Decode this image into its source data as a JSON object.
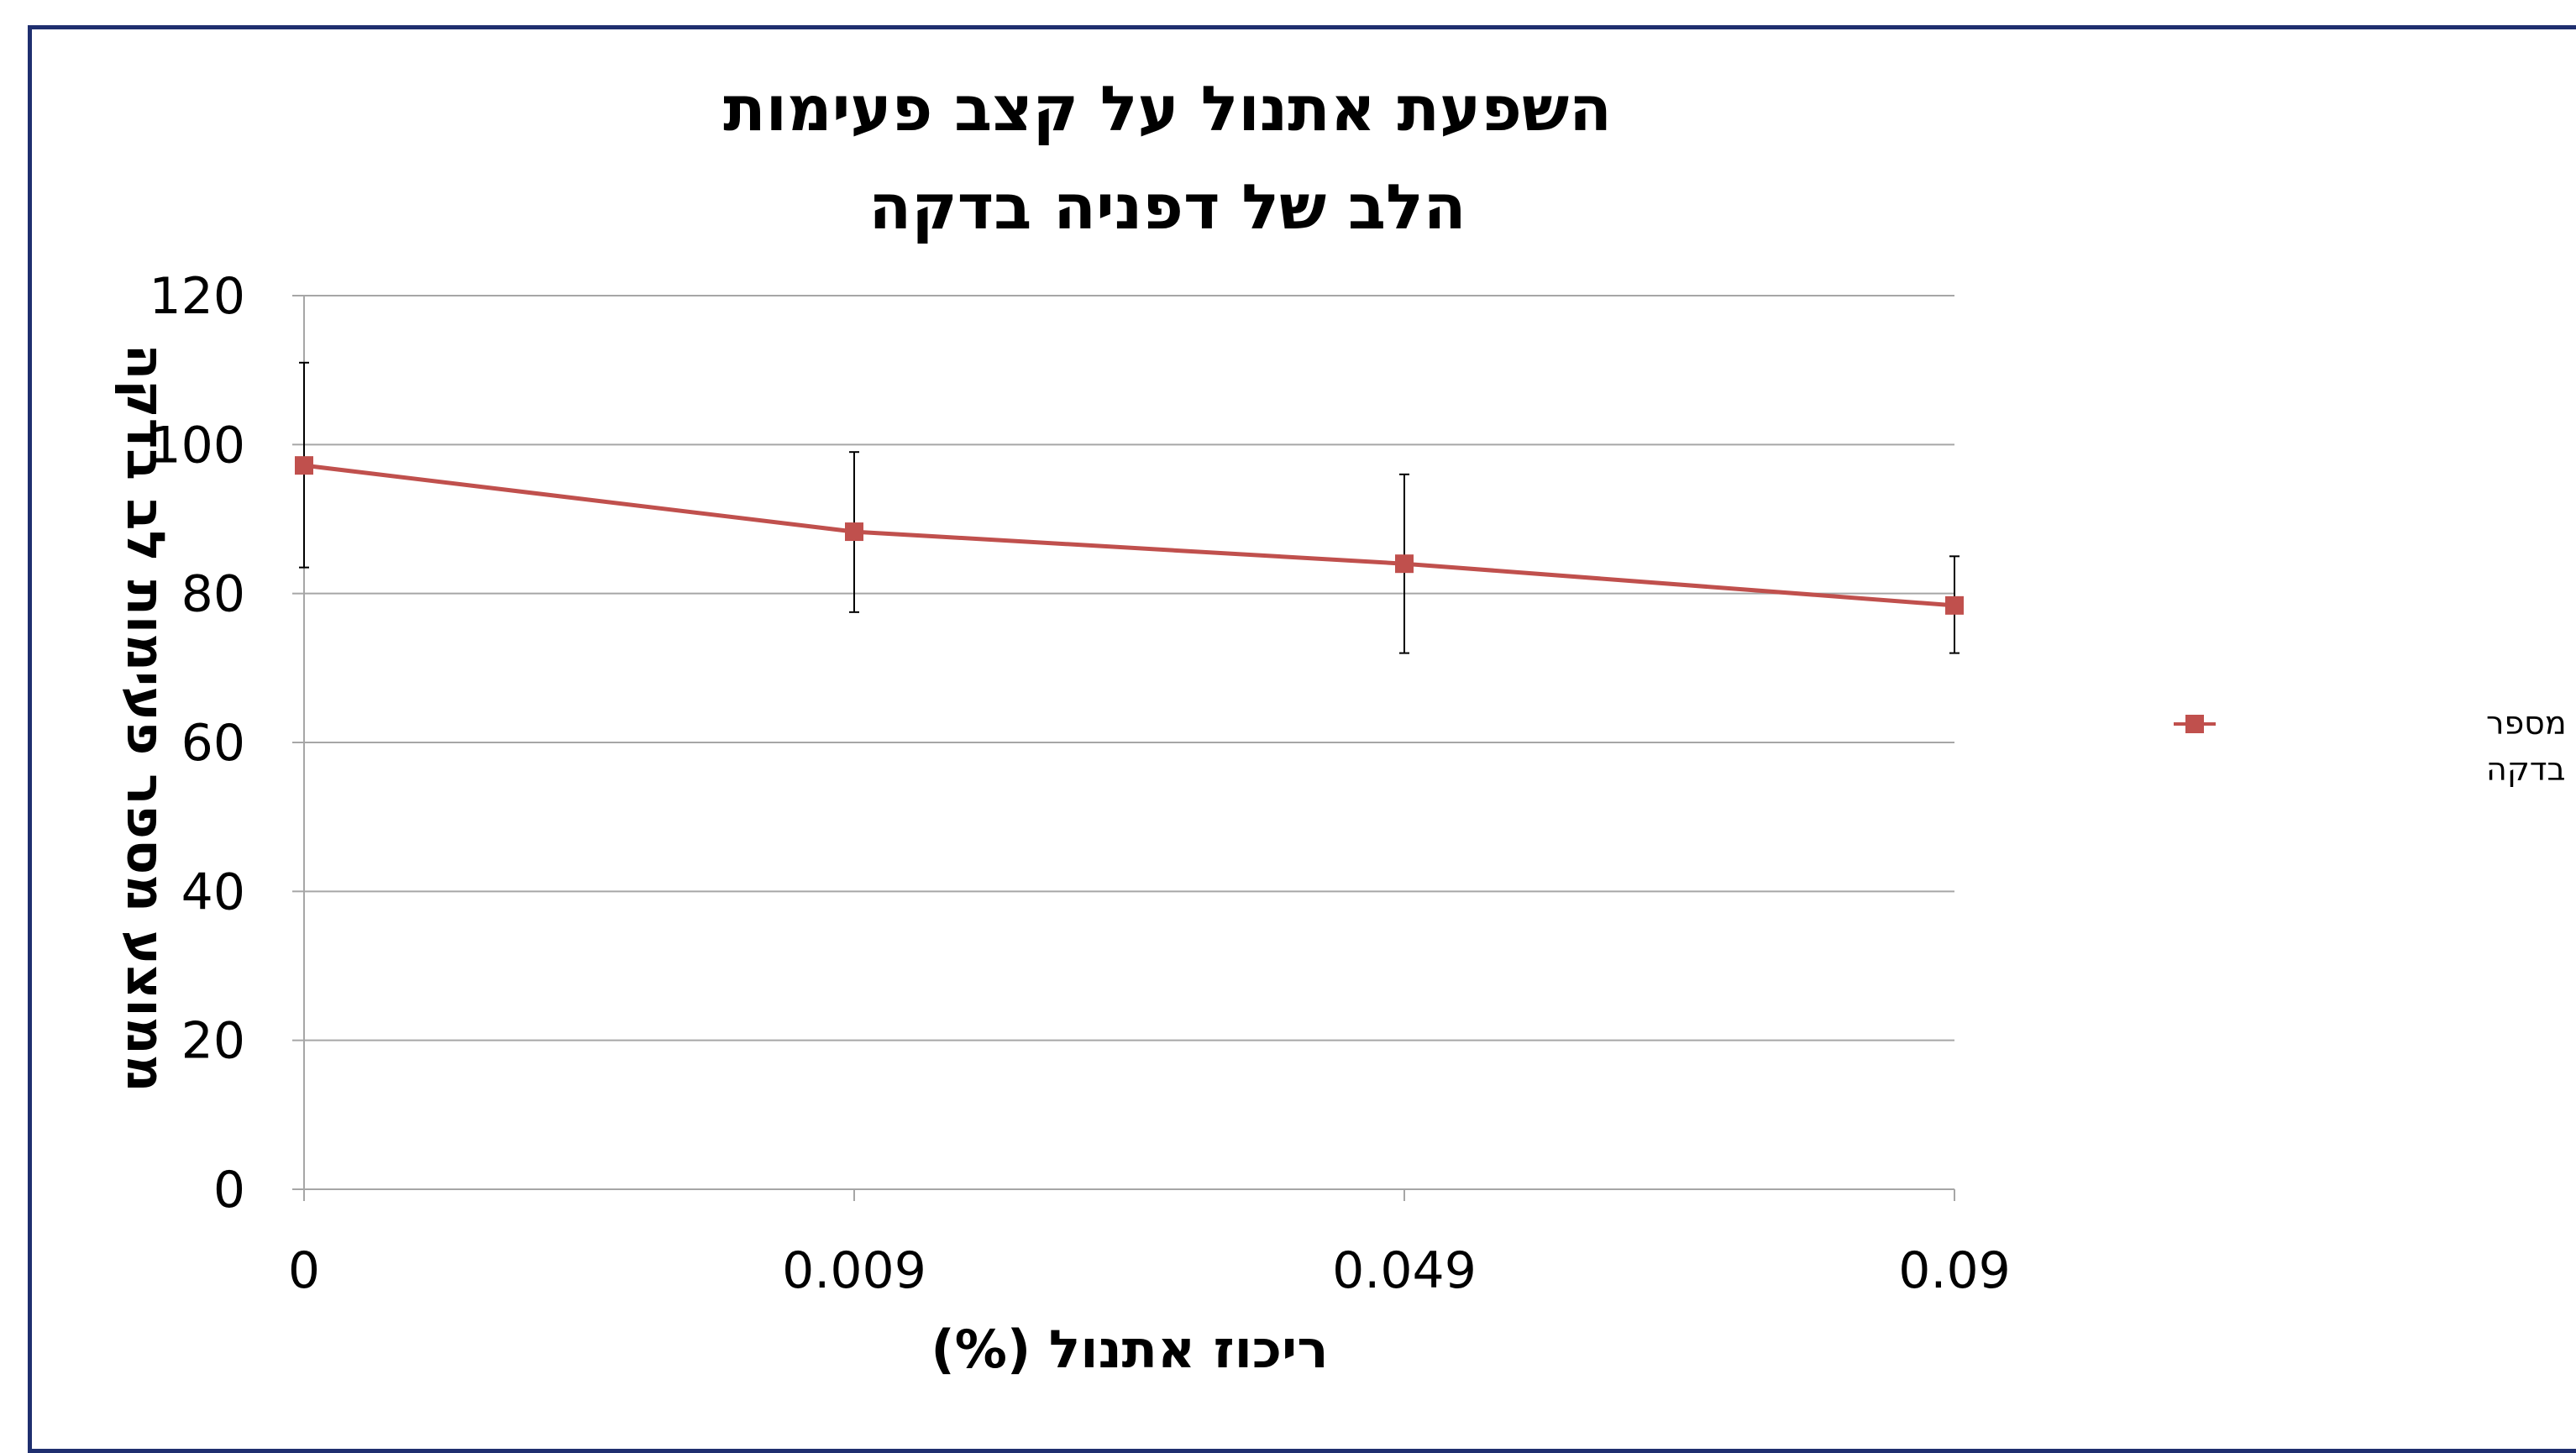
{
  "chart_data": {
    "type": "line",
    "title": [
      "השפעת אתנול על קצב פעימות",
      "הלב של דפניה בדקה"
    ],
    "xlabel": "ריכוז אתנול (%)",
    "ylabel": "ממוצע מספר פעימות לב בדקה",
    "categories": [
      "0",
      "0.009",
      "0.049",
      "0.09"
    ],
    "ylim": [
      0,
      120
    ],
    "yticks": [
      "0",
      "20",
      "40",
      "60",
      "80",
      "100",
      "120"
    ],
    "grid": true,
    "legend_position": "right",
    "series": [
      {
        "name": [
          "ממוצע מספר",
          "פעימות לב בדקה"
        ],
        "color": "#c0504d",
        "marker": "square",
        "values": [
          97.2,
          88.3,
          84,
          78.4
        ],
        "error_high": [
          111,
          99,
          96,
          85
        ],
        "error_low": [
          83.5,
          77.5,
          72,
          72
        ]
      }
    ]
  }
}
